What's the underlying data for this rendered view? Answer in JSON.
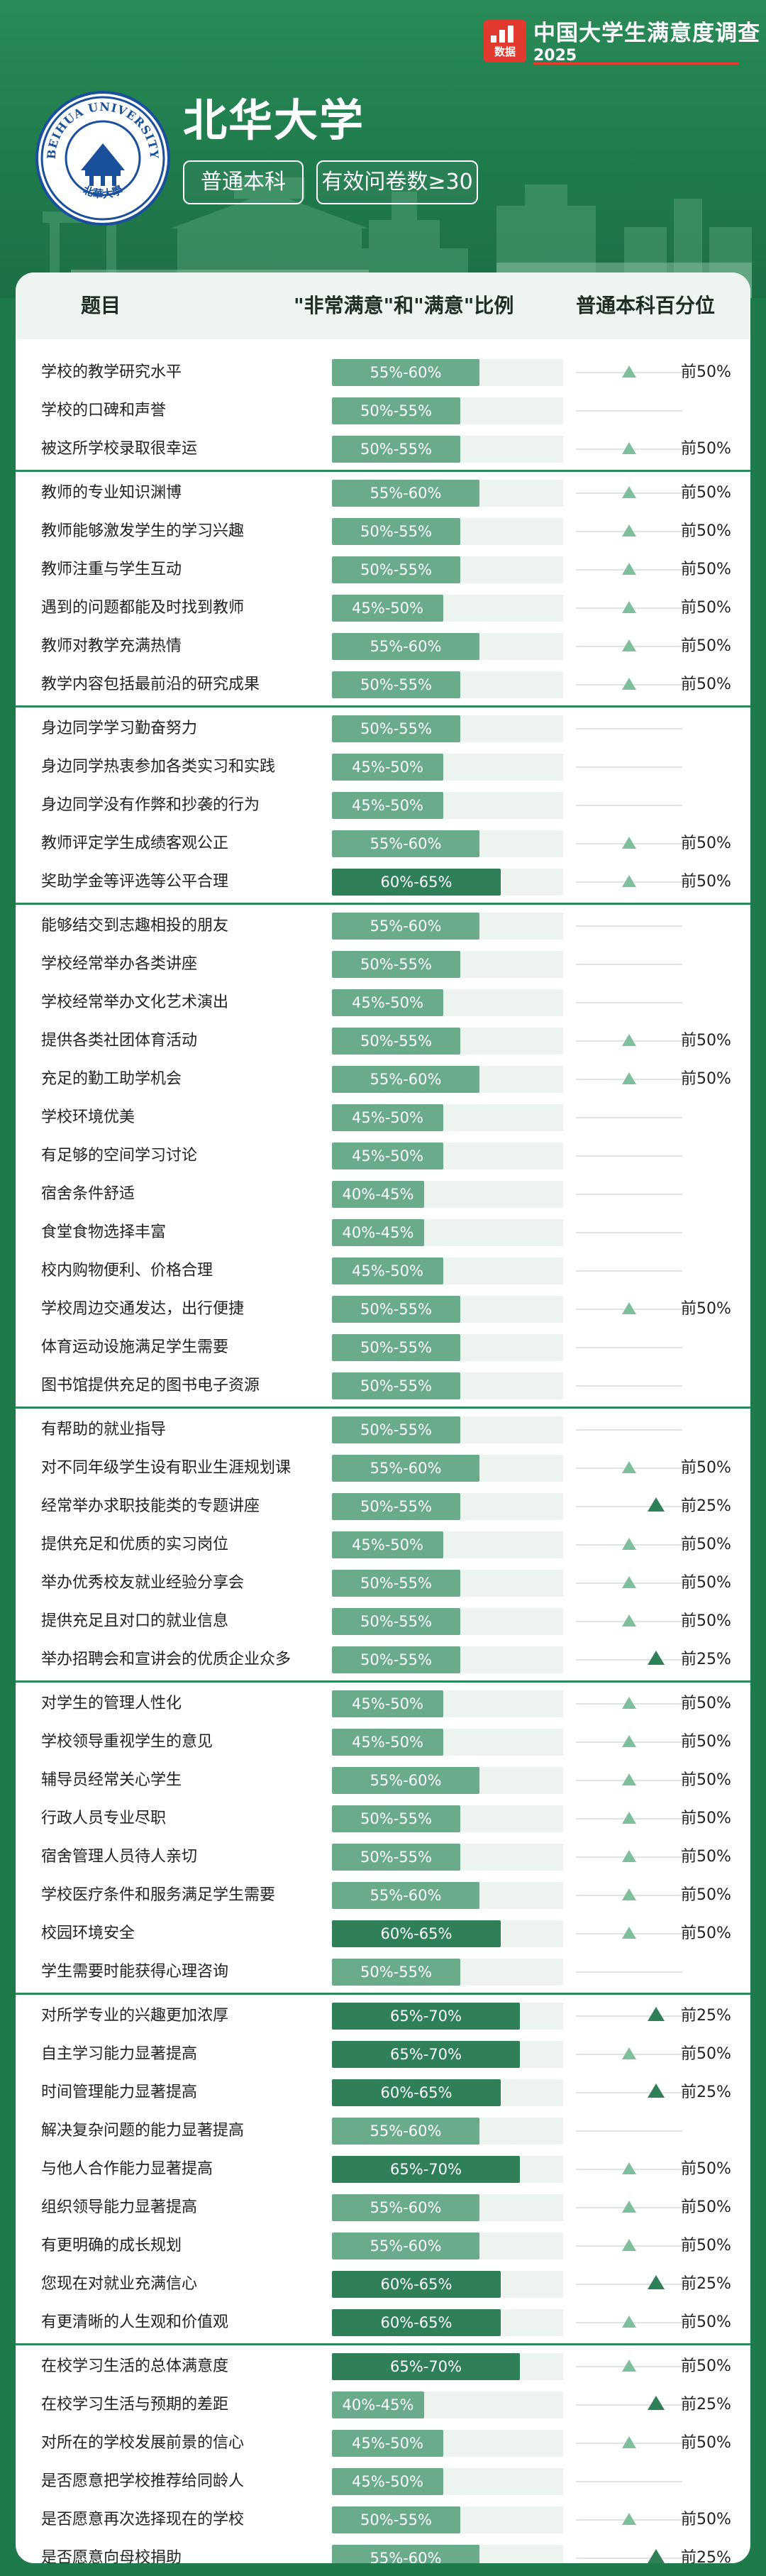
{
  "brand": {
    "logo_label": "数据",
    "title": "中国大学生满意度调查",
    "year": "2025"
  },
  "university": {
    "name": "北华大学",
    "seal_text": "BEIHUA UNIVERSITY",
    "seal_cn": "北華大學",
    "category": "普通本科",
    "sample": "有效问卷数≥30"
  },
  "table": {
    "headers": {
      "item": "题目",
      "ratio": "\"非常满意\"和\"满意\"比例",
      "percentile": "普通本科百分位"
    },
    "colors": {
      "light": "#6aab8b",
      "dark": "#2f7f58",
      "track": "#edf3ef",
      "separator": "#2b8a5a",
      "marker_light": "#7fbf9d",
      "marker_dark": "#2f7f58"
    },
    "groups": [
      [
        {
          "label": "学校的教学研究水平",
          "ratio": "55%-60%",
          "level": 0.585,
          "rank": "前50%",
          "rank_pos": 0.5
        },
        {
          "label": "学校的口碑和声誉",
          "ratio": "50%-55%",
          "level": 0.535,
          "rank": "",
          "rank_pos": null
        },
        {
          "label": "被这所学校录取很幸运",
          "ratio": "50%-55%",
          "level": 0.535,
          "rank": "前50%",
          "rank_pos": 0.5
        }
      ],
      [
        {
          "label": "教师的专业知识渊博",
          "ratio": "55%-60%",
          "level": 0.585,
          "rank": "前50%",
          "rank_pos": 0.5
        },
        {
          "label": "教师能够激发学生的学习兴趣",
          "ratio": "50%-55%",
          "level": 0.535,
          "rank": "前50%",
          "rank_pos": 0.5
        },
        {
          "label": "教师注重与学生互动",
          "ratio": "50%-55%",
          "level": 0.535,
          "rank": "前50%",
          "rank_pos": 0.5
        },
        {
          "label": "遇到的问题都能及时找到教师",
          "ratio": "45%-50%",
          "level": 0.49,
          "rank": "前50%",
          "rank_pos": 0.5
        },
        {
          "label": "教师对教学充满热情",
          "ratio": "55%-60%",
          "level": 0.585,
          "rank": "前50%",
          "rank_pos": 0.5
        },
        {
          "label": "教学内容包括最前沿的研究成果",
          "ratio": "50%-55%",
          "level": 0.535,
          "rank": "前50%",
          "rank_pos": 0.5
        }
      ],
      [
        {
          "label": "身边同学学习勤奋努力",
          "ratio": "50%-55%",
          "level": 0.535,
          "rank": "",
          "rank_pos": null
        },
        {
          "label": "身边同学热衷参加各类实习和实践",
          "ratio": "45%-50%",
          "level": 0.49,
          "rank": "",
          "rank_pos": null
        },
        {
          "label": "身边同学没有作弊和抄袭的行为",
          "ratio": "45%-50%",
          "level": 0.49,
          "rank": "",
          "rank_pos": null
        },
        {
          "label": "教师评定学生成绩客观公正",
          "ratio": "55%-60%",
          "level": 0.585,
          "rank": "前50%",
          "rank_pos": 0.5
        },
        {
          "label": "奖助学金等评选等公平合理",
          "ratio": "60%-65%",
          "level": 0.64,
          "rank": "前50%",
          "rank_pos": 0.5,
          "dark": true
        }
      ],
      [
        {
          "label": "能够结交到志趣相投的朋友",
          "ratio": "55%-60%",
          "level": 0.585,
          "rank": "",
          "rank_pos": null
        },
        {
          "label": "学校经常举办各类讲座",
          "ratio": "50%-55%",
          "level": 0.535,
          "rank": "",
          "rank_pos": null
        },
        {
          "label": "学校经常举办文化艺术演出",
          "ratio": "45%-50%",
          "level": 0.49,
          "rank": "",
          "rank_pos": null
        },
        {
          "label": "提供各类社团体育活动",
          "ratio": "50%-55%",
          "level": 0.535,
          "rank": "前50%",
          "rank_pos": 0.5
        },
        {
          "label": "充足的勤工助学机会",
          "ratio": "55%-60%",
          "level": 0.585,
          "rank": "前50%",
          "rank_pos": 0.5
        },
        {
          "label": "学校环境优美",
          "ratio": "45%-50%",
          "level": 0.49,
          "rank": "",
          "rank_pos": null
        },
        {
          "label": "有足够的空间学习讨论",
          "ratio": "45%-50%",
          "level": 0.49,
          "rank": "",
          "rank_pos": null
        },
        {
          "label": "宿舍条件舒适",
          "ratio": "40%-45%",
          "level": 0.44,
          "rank": "",
          "rank_pos": null
        },
        {
          "label": "食堂食物选择丰富",
          "ratio": "40%-45%",
          "level": 0.44,
          "rank": "",
          "rank_pos": null
        },
        {
          "label": "校内购物便利、价格合理",
          "ratio": "45%-50%",
          "level": 0.49,
          "rank": "",
          "rank_pos": null
        },
        {
          "label": "学校周边交通发达，出行便捷",
          "ratio": "50%-55%",
          "level": 0.535,
          "rank": "前50%",
          "rank_pos": 0.5
        },
        {
          "label": "体育运动设施满足学生需要",
          "ratio": "50%-55%",
          "level": 0.535,
          "rank": "",
          "rank_pos": null
        },
        {
          "label": "图书馆提供充足的图书电子资源",
          "ratio": "50%-55%",
          "level": 0.535,
          "rank": "",
          "rank_pos": null
        }
      ],
      [
        {
          "label": "有帮助的就业指导",
          "ratio": "50%-55%",
          "level": 0.535,
          "rank": "",
          "rank_pos": null
        },
        {
          "label": "对不同年级学生设有职业生涯规划课",
          "ratio": "55%-60%",
          "level": 0.585,
          "rank": "前50%",
          "rank_pos": 0.5
        },
        {
          "label": "经常举办求职技能类的专题讲座",
          "ratio": "50%-55%",
          "level": 0.535,
          "rank": "前25%",
          "rank_pos": 0.75
        },
        {
          "label": "提供充足和优质的实习岗位",
          "ratio": "45%-50%",
          "level": 0.49,
          "rank": "前50%",
          "rank_pos": 0.5
        },
        {
          "label": "举办优秀校友就业经验分享会",
          "ratio": "50%-55%",
          "level": 0.535,
          "rank": "前50%",
          "rank_pos": 0.5
        },
        {
          "label": "提供充足且对口的就业信息",
          "ratio": "50%-55%",
          "level": 0.535,
          "rank": "前50%",
          "rank_pos": 0.5
        },
        {
          "label": "举办招聘会和宣讲会的优质企业众多",
          "ratio": "50%-55%",
          "level": 0.535,
          "rank": "前25%",
          "rank_pos": 0.75
        }
      ],
      [
        {
          "label": "对学生的管理人性化",
          "ratio": "45%-50%",
          "level": 0.49,
          "rank": "前50%",
          "rank_pos": 0.5
        },
        {
          "label": "学校领导重视学生的意见",
          "ratio": "45%-50%",
          "level": 0.49,
          "rank": "前50%",
          "rank_pos": 0.5
        },
        {
          "label": "辅导员经常关心学生",
          "ratio": "55%-60%",
          "level": 0.585,
          "rank": "前50%",
          "rank_pos": 0.5
        },
        {
          "label": "行政人员专业尽职",
          "ratio": "50%-55%",
          "level": 0.535,
          "rank": "前50%",
          "rank_pos": 0.5
        },
        {
          "label": "宿舍管理人员待人亲切",
          "ratio": "50%-55%",
          "level": 0.535,
          "rank": "前50%",
          "rank_pos": 0.5
        },
        {
          "label": "学校医疗条件和服务满足学生需要",
          "ratio": "55%-60%",
          "level": 0.585,
          "rank": "前50%",
          "rank_pos": 0.5
        },
        {
          "label": "校园环境安全",
          "ratio": "60%-65%",
          "level": 0.64,
          "rank": "前50%",
          "rank_pos": 0.5,
          "dark": true
        },
        {
          "label": "学生需要时能获得心理咨询",
          "ratio": "50%-55%",
          "level": 0.535,
          "rank": "",
          "rank_pos": null
        }
      ],
      [
        {
          "label": "对所学专业的兴趣更加浓厚",
          "ratio": "65%-70%",
          "level": 0.69,
          "rank": "前25%",
          "rank_pos": 0.75,
          "dark": true
        },
        {
          "label": "自主学习能力显著提高",
          "ratio": "65%-70%",
          "level": 0.69,
          "rank": "前50%",
          "rank_pos": 0.5,
          "dark": true
        },
        {
          "label": "时间管理能力显著提高",
          "ratio": "60%-65%",
          "level": 0.64,
          "rank": "前25%",
          "rank_pos": 0.75,
          "dark": true
        },
        {
          "label": "解决复杂问题的能力显著提高",
          "ratio": "55%-60%",
          "level": 0.585,
          "rank": "",
          "rank_pos": null
        },
        {
          "label": "与他人合作能力显著提高",
          "ratio": "65%-70%",
          "level": 0.69,
          "rank": "前50%",
          "rank_pos": 0.5,
          "dark": true
        },
        {
          "label": "组织领导能力显著提高",
          "ratio": "55%-60%",
          "level": 0.585,
          "rank": "前50%",
          "rank_pos": 0.5
        },
        {
          "label": "有更明确的成长规划",
          "ratio": "55%-60%",
          "level": 0.585,
          "rank": "前50%",
          "rank_pos": 0.5
        },
        {
          "label": "您现在对就业充满信心",
          "ratio": "60%-65%",
          "level": 0.64,
          "rank": "前25%",
          "rank_pos": 0.75,
          "dark": true
        },
        {
          "label": "有更清晰的人生观和价值观",
          "ratio": "60%-65%",
          "level": 0.64,
          "rank": "前50%",
          "rank_pos": 0.5,
          "dark": true
        }
      ],
      [
        {
          "label": "在校学习生活的总体满意度",
          "ratio": "65%-70%",
          "level": 0.69,
          "rank": "前50%",
          "rank_pos": 0.5,
          "dark": true
        },
        {
          "label": "在校学习生活与预期的差距",
          "ratio": "40%-45%",
          "level": 0.44,
          "rank": "前25%",
          "rank_pos": 0.75
        },
        {
          "label": "对所在的学校发展前景的信心",
          "ratio": "45%-50%",
          "level": 0.49,
          "rank": "前50%",
          "rank_pos": 0.5
        },
        {
          "label": "是否愿意把学校推荐给同龄人",
          "ratio": "45%-50%",
          "level": 0.49,
          "rank": "",
          "rank_pos": null
        },
        {
          "label": "是否愿意再次选择现在的学校",
          "ratio": "50%-55%",
          "level": 0.535,
          "rank": "前50%",
          "rank_pos": 0.5
        },
        {
          "label": "是否愿意向母校捐助",
          "ratio": "55%-60%",
          "level": 0.585,
          "rank": "前25%",
          "rank_pos": 0.75
        }
      ]
    ]
  }
}
